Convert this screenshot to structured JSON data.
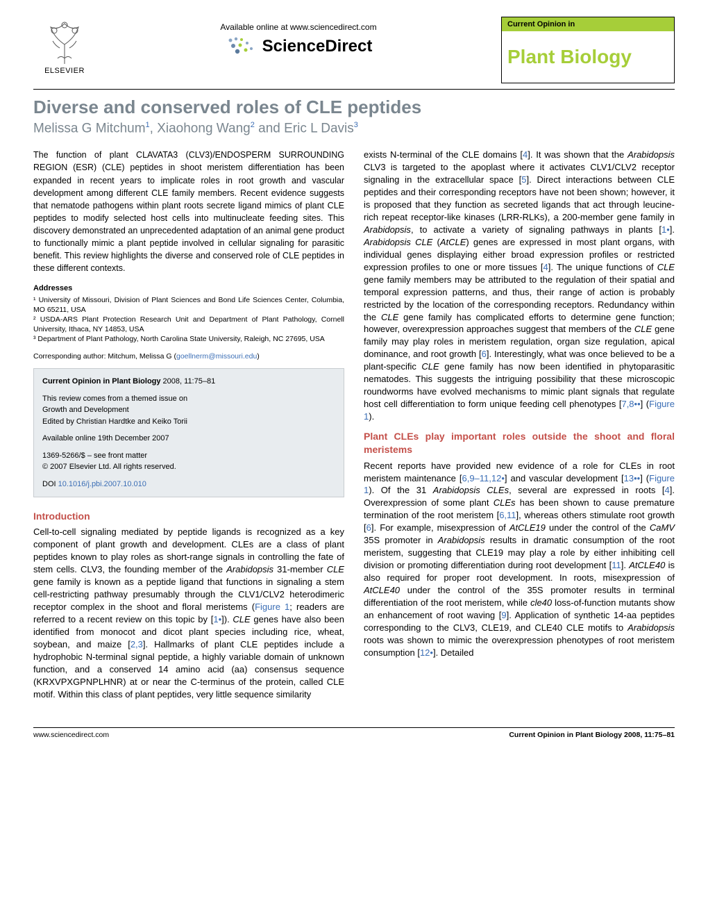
{
  "header": {
    "elsevier_label": "ELSEVIER",
    "available_line": "Available online at www.sciencedirect.com",
    "sciencedirect": "ScienceDirect",
    "badge_top": "Current Opinion in",
    "badge_title": "Plant Biology"
  },
  "article": {
    "title": "Diverse and conserved roles of CLE peptides",
    "authors_html": "Melissa G Mitchum<sup>1</sup>, Xiaohong Wang<sup>2</sup> and Eric L Davis<sup>3</sup>"
  },
  "abstract": "The function of plant CLAVATA3 (CLV3)/ENDOSPERM SURROUNDING REGION (ESR) (CLE) peptides in shoot meristem differentiation has been expanded in recent years to implicate roles in root growth and vascular development among different CLE family members. Recent evidence suggests that nematode pathogens within plant roots secrete ligand mimics of plant CLE peptides to modify selected host cells into multinucleate feeding sites. This discovery demonstrated an unprecedented adaptation of an animal gene product to functionally mimic a plant peptide involved in cellular signaling for parasitic benefit. This review highlights the diverse and conserved role of CLE peptides in these different contexts.",
  "addresses": {
    "heading": "Addresses",
    "lines": "¹ University of Missouri, Division of Plant Sciences and Bond Life Sciences Center, Columbia, MO 65211, USA\n² USDA-ARS Plant Protection Research Unit and Department of Plant Pathology, Cornell University, Ithaca, NY 14853, USA\n³ Department of Plant Pathology, North Carolina State University, Raleigh, NC 27695, USA"
  },
  "corresponding": {
    "label": "Corresponding author: Mitchum, Melissa G (",
    "email": "goellnerm@missouri.edu",
    "close": ")"
  },
  "infobox": {
    "citation_bold": "Current Opinion in Plant Biology",
    "citation_rest": " 2008, 11:75–81",
    "themed1": "This review comes from a themed issue on",
    "themed2": "Growth and Development",
    "editors": "Edited by Christian Hardtke and Keiko Torii",
    "online": "Available online 19th December 2007",
    "issn": "1369-5266/$ – see front matter",
    "copyright": "© 2007 Elsevier Ltd. All rights reserved.",
    "doi_label": "DOI ",
    "doi": "10.1016/j.pbi.2007.10.010"
  },
  "sections": {
    "intro_head": "Introduction",
    "section2_head": "Plant CLEs play important roles outside the shoot and floral meristems"
  },
  "footer": {
    "left": "www.sciencedirect.com",
    "right": "Current Opinion in Plant Biology 2008, 11:75–81"
  },
  "colors": {
    "heading_grey": "#7a868f",
    "section_red": "#c4504a",
    "link_blue": "#3b6eb5",
    "badge_green": "#a6ce39",
    "infobox_bg": "#e8ecef"
  }
}
